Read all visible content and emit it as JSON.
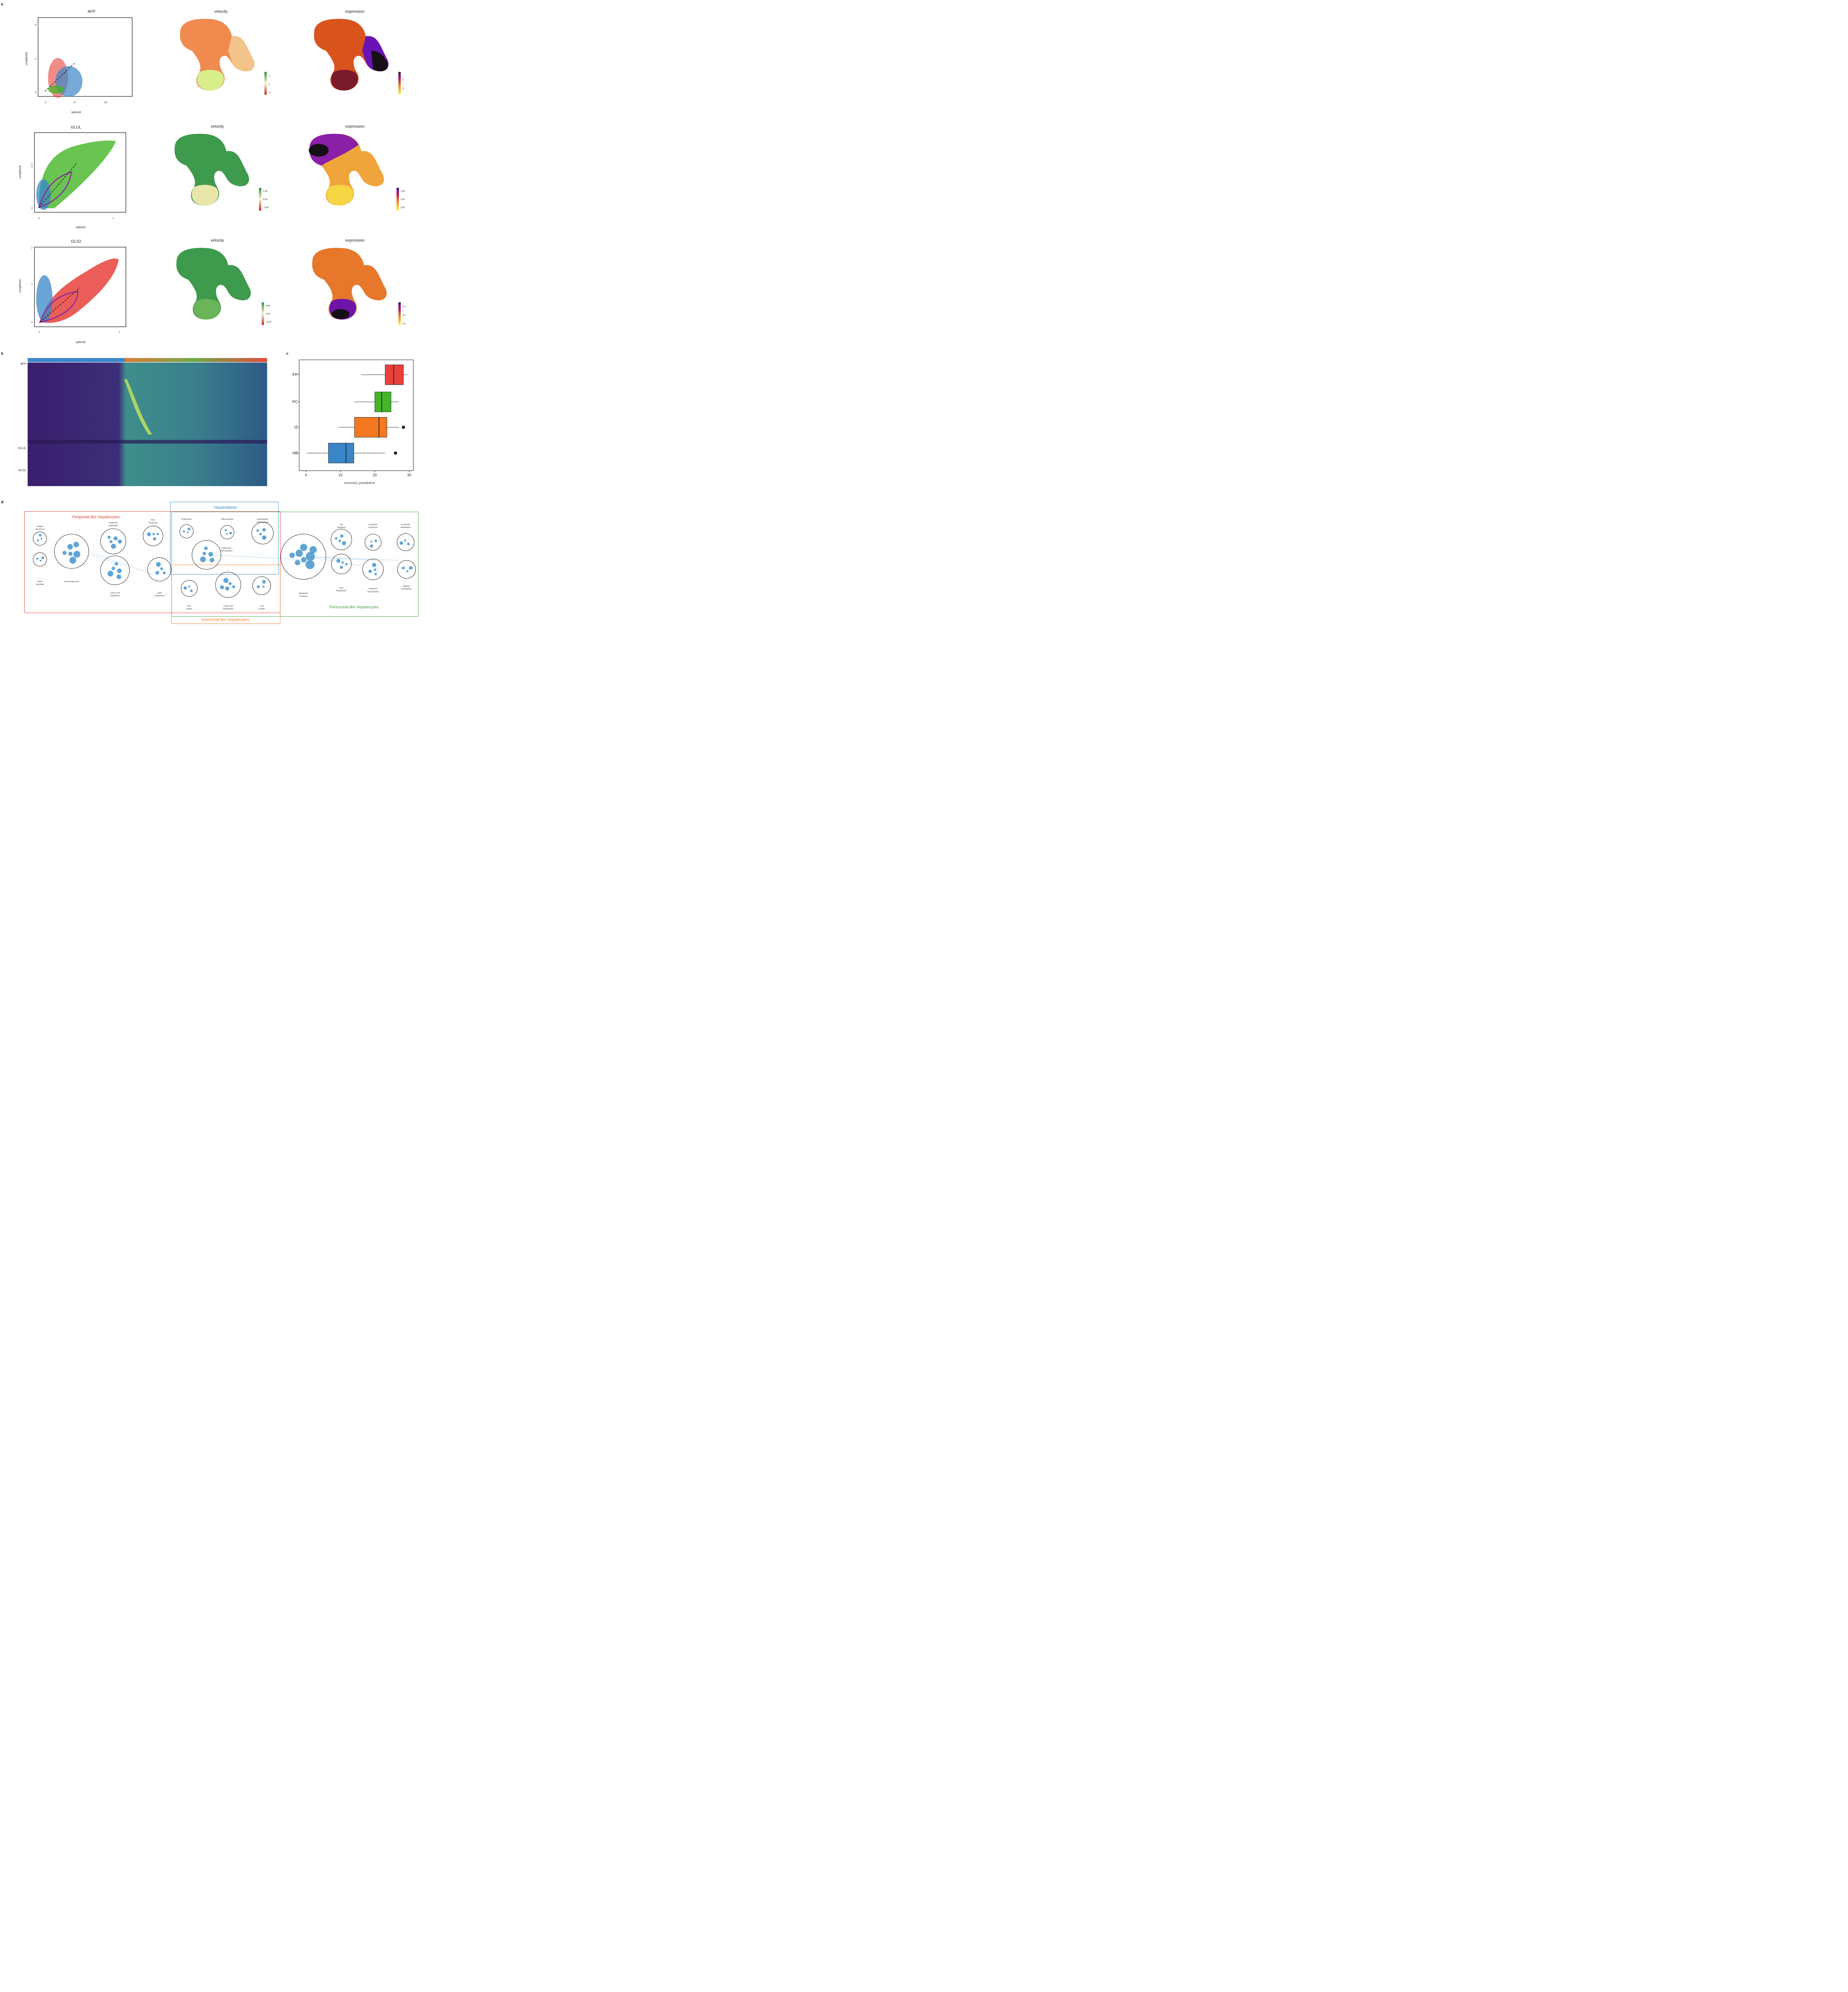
{
  "panels": {
    "a": "a",
    "b": "b",
    "c": "c",
    "d": "d"
  },
  "panel_a": {
    "genes": [
      {
        "gene": "AFP",
        "xlabel": "spliced",
        "ylabel": "unspliced",
        "xticks": [
          "0",
          "8",
          "16"
        ],
        "yticks": [
          "0",
          "3",
          "6"
        ],
        "velocity_title": "velocity",
        "velocity_ticks": [
          "1",
          "0",
          "−1"
        ],
        "expression_title": "expression",
        "expression_ticks": [
          "6",
          "4"
        ]
      },
      {
        "gene": "GLUL",
        "xlabel": "spliced",
        "ylabel": "unspliced",
        "xticks": [
          "0",
          "1"
        ],
        "yticks": [
          "0",
          "1",
          "2"
        ],
        "velocity_title": "velocity",
        "velocity_ticks": [
          "0.06",
          "0.00",
          "−0.06"
        ],
        "expression_title": "expression",
        "expression_ticks": [
          "0.30",
          "0.15",
          "0.00"
        ]
      },
      {
        "gene": "GLS2",
        "xlabel": "spliced",
        "ylabel": "unspliced",
        "xticks": [
          "0",
          "1"
        ],
        "yticks": [
          "0",
          "1",
          "2"
        ],
        "velocity_title": "velocity",
        "velocity_ticks": [
          "0.04",
          "0.00",
          "−0.04"
        ],
        "expression_title": "expression",
        "expression_ticks": [
          "0.4",
          "0.2",
          "0.0"
        ]
      }
    ]
  },
  "panel_b": {
    "row_labels": [
      "AFP",
      "GLUL",
      "GLS2"
    ]
  },
  "chart_data": {
    "type": "box",
    "categories": [
      "PP",
      "PC",
      "IZ",
      "HB"
    ],
    "colors": [
      "#e8413b",
      "#43b526",
      "#f5771f",
      "#3a86c8"
    ],
    "stats": [
      {
        "min": 16,
        "q1": 23,
        "median": 25.5,
        "q3": 28.3,
        "max": 29.5,
        "outliers": []
      },
      {
        "min": 14,
        "q1": 20,
        "median": 22,
        "q3": 24.7,
        "max": 27,
        "outliers": []
      },
      {
        "min": 9.5,
        "q1": 14.1,
        "median": 21.2,
        "q3": 23.5,
        "max": 27,
        "outliers": [
          28.3
        ]
      },
      {
        "min": 0.3,
        "q1": 6.5,
        "median": 11.6,
        "q3": 13.9,
        "max": 23,
        "outliers": [
          26
        ]
      }
    ],
    "xlabel": "monocle3_pseudotime",
    "xticks": [
      "0",
      "10",
      "20",
      "30"
    ],
    "xlim": [
      0,
      30
    ]
  },
  "panel_d": {
    "groups": [
      "Periportal like Hepatocytes",
      "Hepatoblasts",
      "Pericentral like Hepatocytes",
      "Interzonal like Hepatocytes"
    ],
    "modules": [
      "Oxygen",
      "Response",
      "Notch",
      "Signaling",
      "Gluconeogenesis",
      "Glutamine",
      "Catabolism",
      "Amino acid",
      "Catabolism",
      "ROS",
      "Response",
      "Lipid",
      "Catabolism",
      "Proliferation",
      "Differentiation",
      "HepatoBiliary",
      "Development",
      "Hepatocyte",
      "Differentiation",
      "DNA",
      "Repair",
      "Amino acid",
      "Metabolism",
      "Cell",
      "Growth",
      "Metabolite",
      "Transport",
      "Wnt",
      "Signaling",
      "NOS",
      "Metabolism",
      "Xenobiotic",
      "Response",
      "Xenobiotic",
      "Metabolism",
      "Glutamine",
      "Biosynthesis",
      "Pigment",
      "Metabolism"
    ]
  }
}
